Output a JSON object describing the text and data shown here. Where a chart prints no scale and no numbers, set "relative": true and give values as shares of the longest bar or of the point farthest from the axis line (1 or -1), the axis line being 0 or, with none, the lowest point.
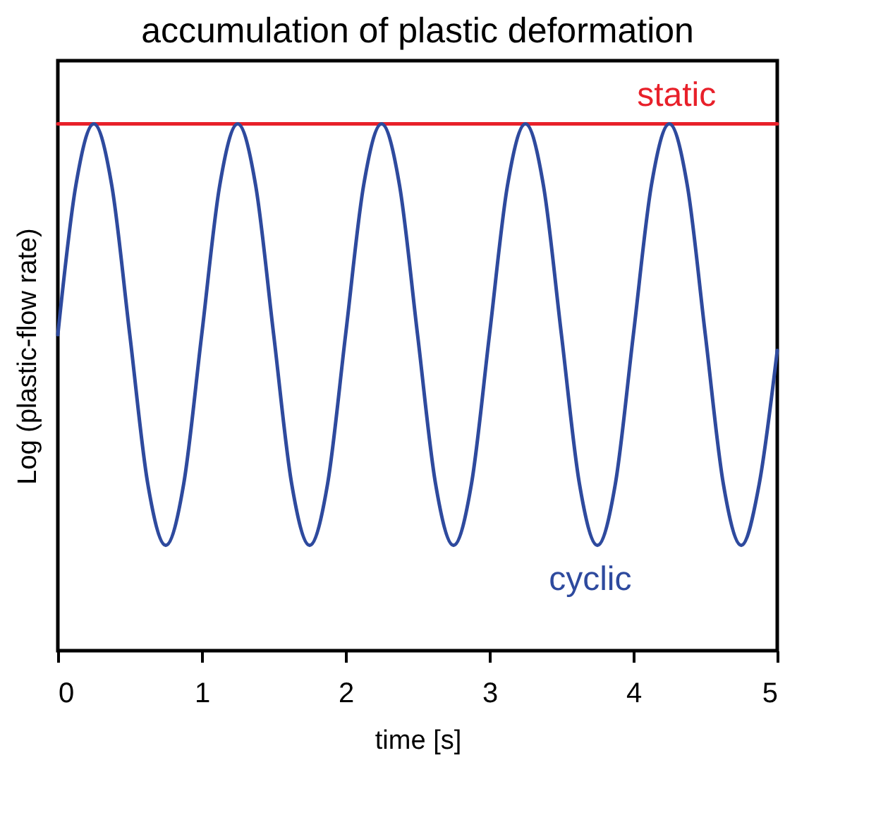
{
  "chart_data": {
    "type": "line",
    "title": "accumulation of plastic deformation",
    "xlabel": "time [s]",
    "ylabel": "Log (plastic-flow rate)",
    "relative": true,
    "xlim": [
      0,
      5
    ],
    "xticks": [
      0,
      1,
      2,
      3,
      4,
      5
    ],
    "grid": false,
    "marker": "none",
    "line_style": "solid",
    "x": [
      0,
      0.125,
      0.25,
      0.375,
      0.5,
      0.625,
      0.75,
      0.875,
      1,
      1.125,
      1.25,
      1.375,
      1.5,
      1.625,
      1.75,
      1.875,
      2,
      2.125,
      2.25,
      2.375,
      2.5,
      2.625,
      2.75,
      2.875,
      3,
      3.125,
      3.25,
      3.375,
      3.5,
      3.625,
      3.75,
      3.875,
      4,
      4.125,
      4.25,
      4.375,
      4.5,
      4.625,
      4.75,
      4.875,
      5
    ],
    "series": [
      {
        "name": "static",
        "color": "#e8202a",
        "x": [
          0,
          5
        ],
        "values": [
          1,
          1
        ]
      },
      {
        "name": "cyclic",
        "color": "#2e4a9e",
        "values": [
          0.6,
          0.883,
          1.0,
          0.883,
          0.6,
          0.317,
          0.2,
          0.317,
          0.6,
          0.883,
          1.0,
          0.883,
          0.6,
          0.317,
          0.2,
          0.317,
          0.6,
          0.883,
          1.0,
          0.883,
          0.6,
          0.317,
          0.2,
          0.317,
          0.6,
          0.883,
          1.0,
          0.883,
          0.6,
          0.317,
          0.2,
          0.317,
          0.6,
          0.883,
          1.0,
          0.883,
          0.6,
          0.317,
          0.2,
          0.317,
          0.57
        ]
      }
    ]
  }
}
